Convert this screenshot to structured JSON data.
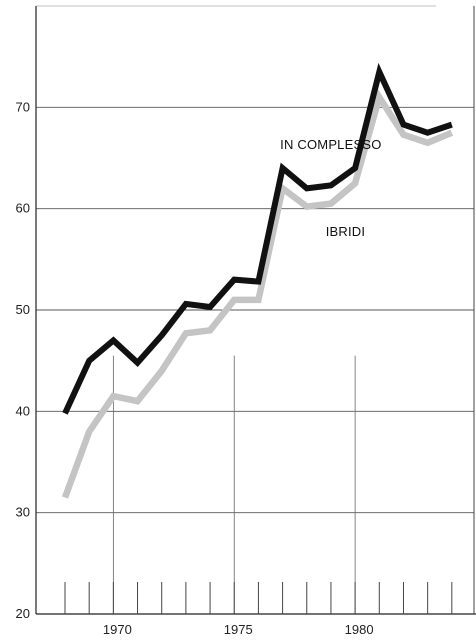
{
  "chart_data": {
    "type": "line",
    "title": "",
    "xlabel": "",
    "ylabel": "",
    "x": [
      1968,
      1969,
      1970,
      1971,
      1972,
      1973,
      1974,
      1975,
      1976,
      1977,
      1978,
      1979,
      1980,
      1981,
      1982,
      1983,
      1984
    ],
    "xlim": [
      1966.8,
      1985
    ],
    "ylim": [
      20,
      80
    ],
    "x_ticks": [
      1970,
      1975,
      1980
    ],
    "y_ticks": [
      20,
      30,
      40,
      50,
      60,
      70
    ],
    "grid": true,
    "series": [
      {
        "name": "IN COMPLESSO",
        "color": "#111111",
        "values": [
          39.8,
          45.0,
          47.0,
          44.8,
          47.5,
          50.6,
          50.3,
          53.0,
          52.8,
          64.0,
          62.0,
          62.3,
          64.0,
          73.5,
          68.3,
          67.5,
          68.3
        ]
      },
      {
        "name": "IBRIDI",
        "color": "#c4c4c4",
        "values": [
          31.5,
          38.0,
          41.5,
          41.0,
          44.0,
          47.7,
          48.0,
          51.0,
          51.0,
          62.0,
          60.2,
          60.5,
          62.5,
          71.0,
          67.3,
          66.5,
          67.5
        ]
      }
    ]
  }
}
